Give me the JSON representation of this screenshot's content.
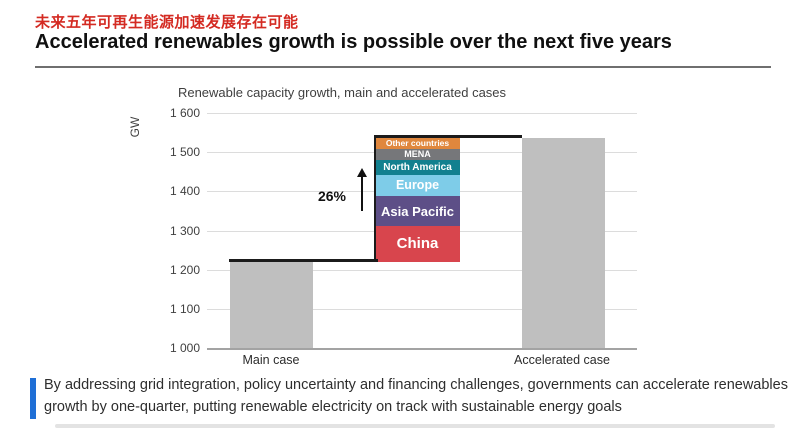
{
  "header": {
    "title_zh": "未来五年可再生能源加速发展存在可能",
    "title_en": "Accelerated renewables growth is possible over the next five years",
    "title_zh_color": "#d42a22"
  },
  "chart_data": {
    "type": "bar",
    "title": "Renewable capacity growth, main and accelerated cases",
    "ylabel": "GW",
    "ylim": [
      1000,
      1600
    ],
    "ytick_step": 100,
    "grid": true,
    "categories": [
      "Main case",
      "Accelerated case"
    ],
    "bars": [
      {
        "label": "Main case",
        "value": 1220,
        "color": "#bfbfbf"
      },
      {
        "label": "Accelerated case",
        "value": 1537,
        "color": "#bfbfbf"
      }
    ],
    "delta": {
      "label": "26%",
      "base": 1220,
      "top": 1537,
      "segments_bottom_to_top": [
        {
          "name": "China",
          "value": 92,
          "color": "#d8454d"
        },
        {
          "name": "Asia Pacific",
          "value": 75,
          "color": "#5d4f87"
        },
        {
          "name": "Europe",
          "value": 55,
          "color": "#7ecce8"
        },
        {
          "name": "North America",
          "value": 37,
          "color": "#12808f"
        },
        {
          "name": "MENA",
          "value": 30,
          "color": "#76777a"
        },
        {
          "name": "Other countries",
          "value": 28,
          "color": "#e0873d"
        }
      ]
    }
  },
  "caption": {
    "text": "By addressing grid integration, policy uncertainty and financing challenges, governments can accelerate renewables growth by one-quarter, putting renewable electricity on track with sustainable energy goals",
    "bar_color": "#1f6fd6"
  }
}
